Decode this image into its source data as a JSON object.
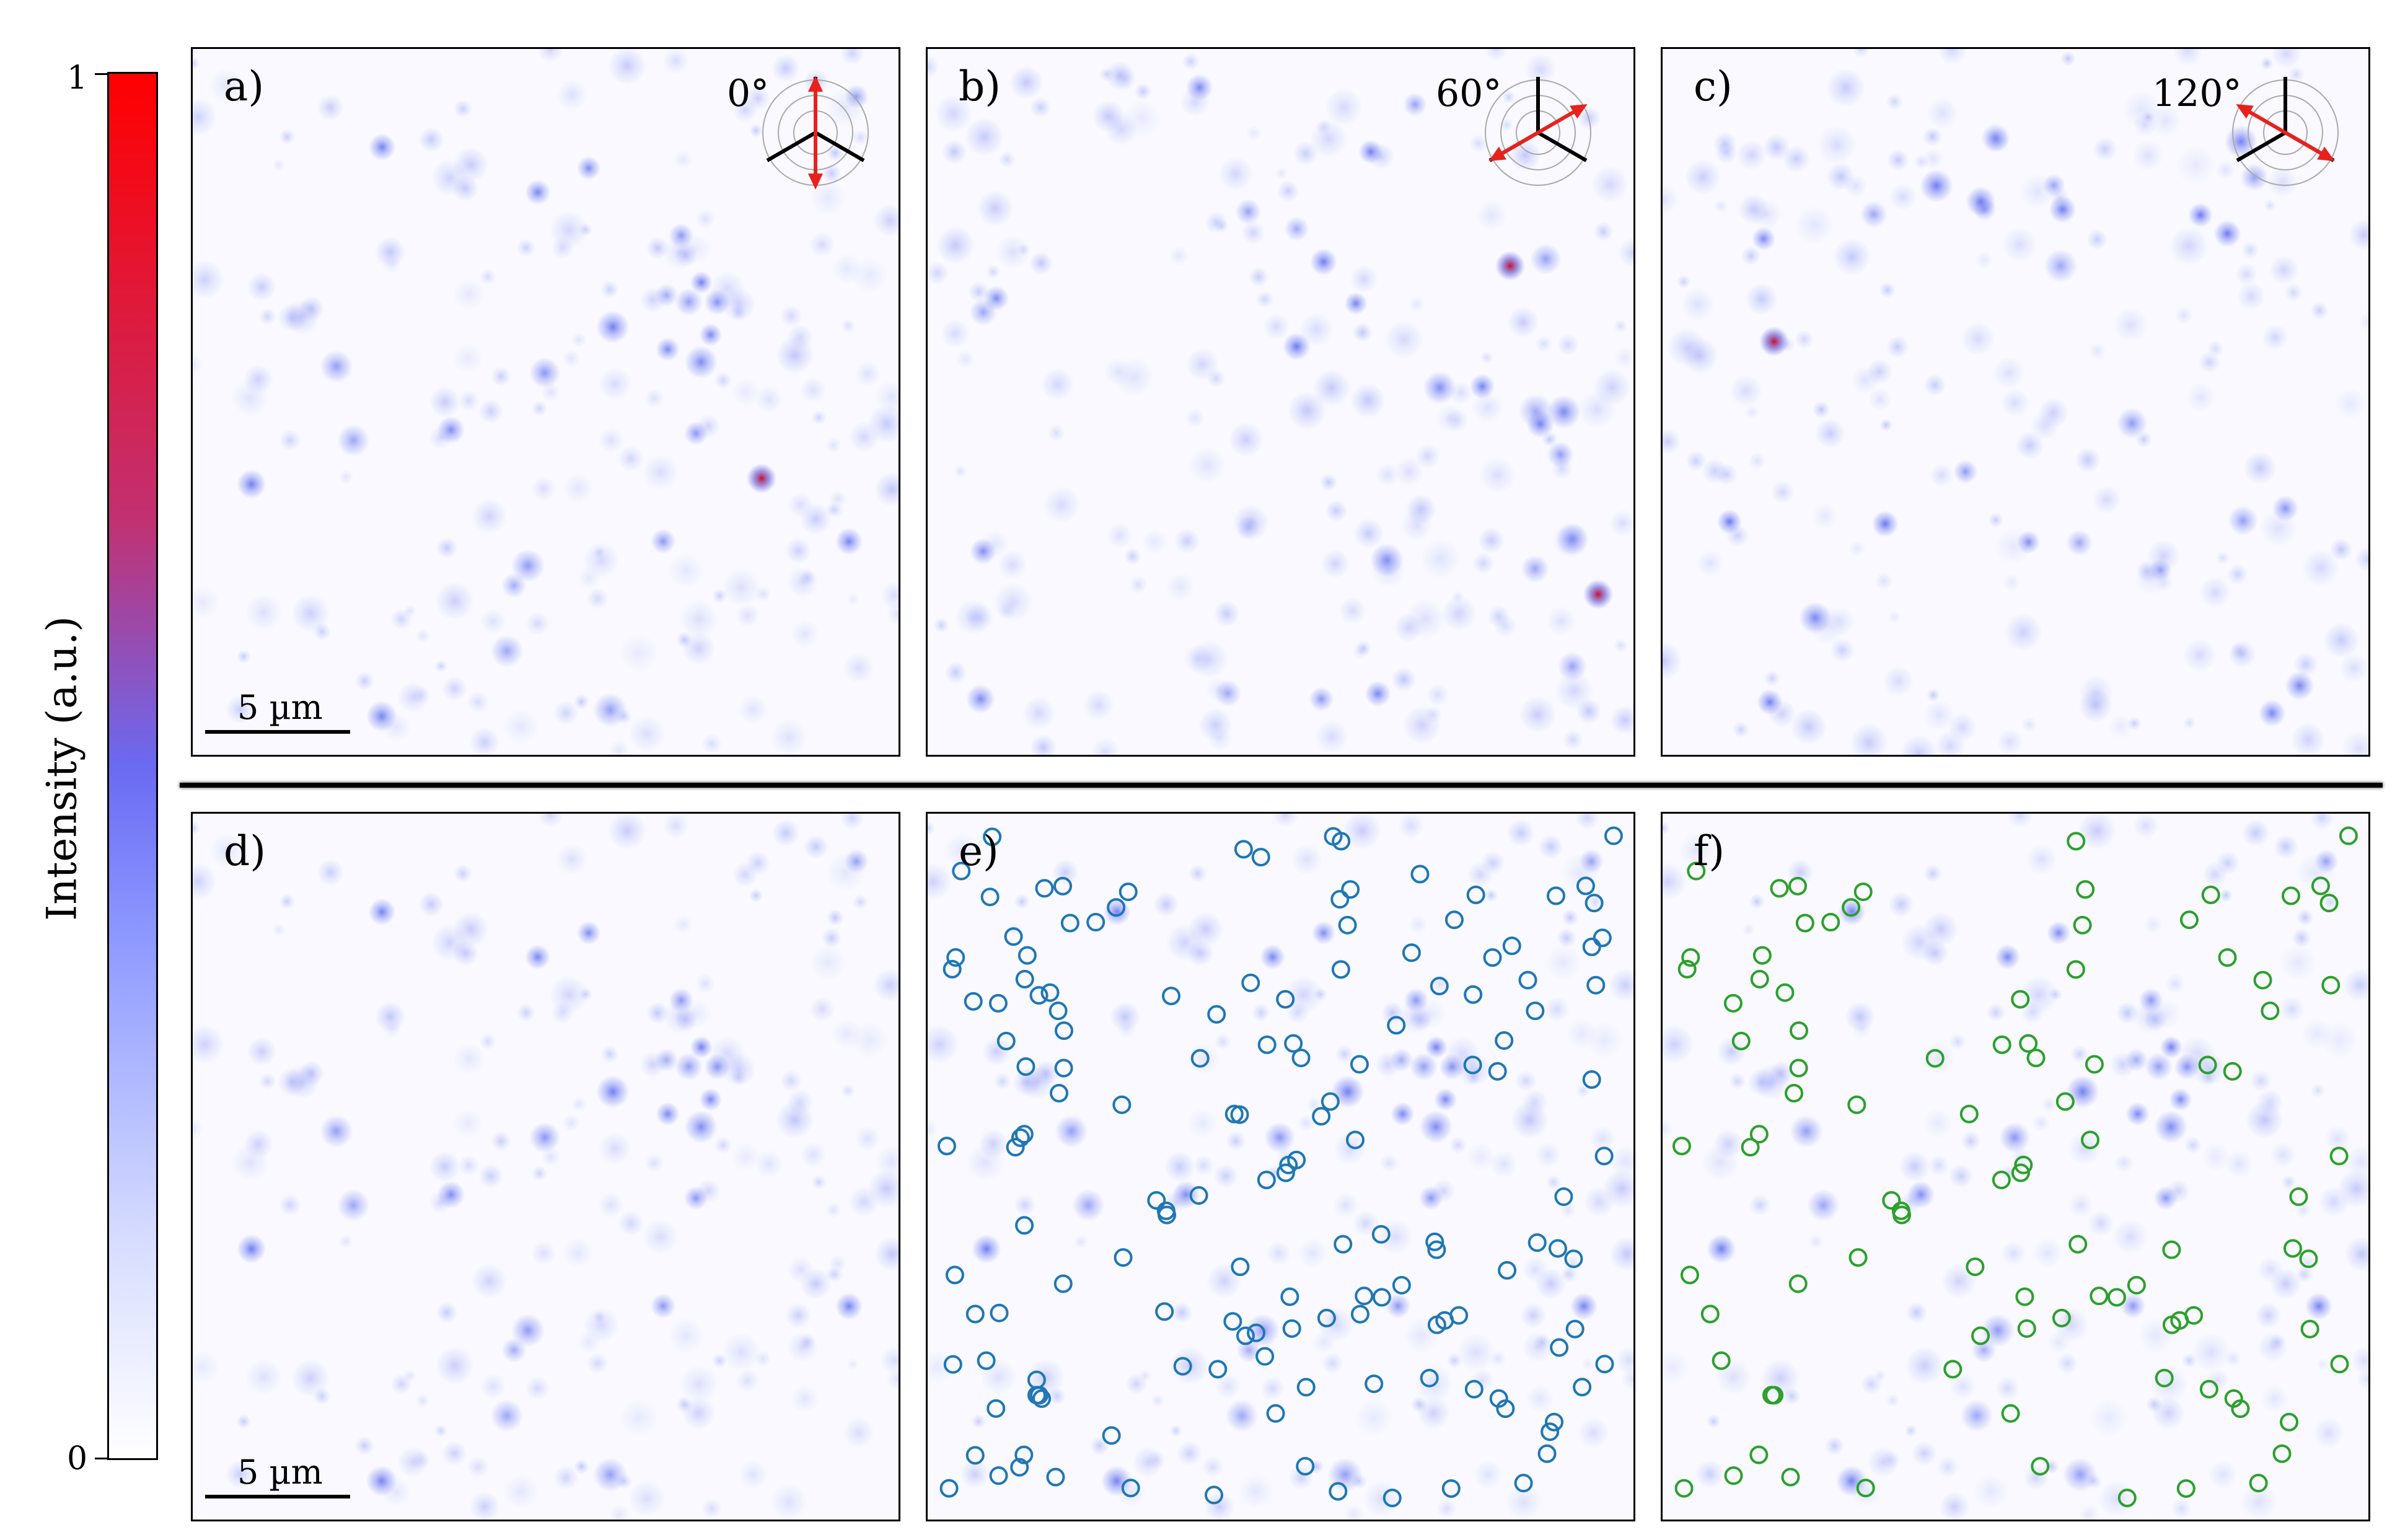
{
  "colorbar": {
    "label": "Intensity (a.u.)",
    "max_label": "1",
    "min_label": "0"
  },
  "panels": [
    {
      "id": "a",
      "label": "a)",
      "angle": "0°"
    },
    {
      "id": "b",
      "label": "b)",
      "angle": "60°"
    },
    {
      "id": "c",
      "label": "c)",
      "angle": "120°"
    },
    {
      "id": "d",
      "label": "d)"
    },
    {
      "id": "e",
      "label": "e)"
    },
    {
      "id": "f",
      "label": "f)"
    }
  ],
  "scalebar": {
    "label": "5 µm"
  },
  "colors": {
    "circle_e": "#1f77b4",
    "circle_f": "#2ca02c",
    "arrow": "#e8211d",
    "spot": "#5c6cf0",
    "hot_spot": "#c8102e"
  }
}
